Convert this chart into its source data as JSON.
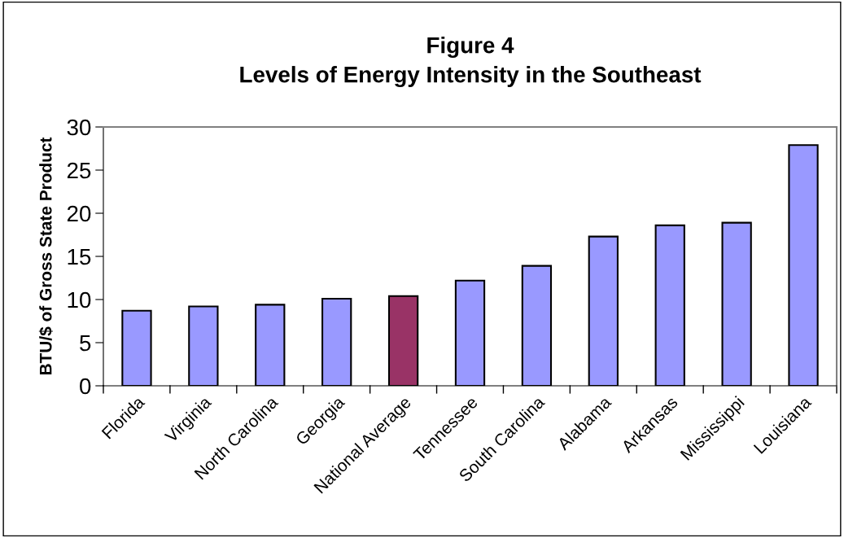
{
  "chart_data": {
    "type": "bar",
    "title": "Figure 4\nLevels of Energy Intensity in the Southeast",
    "ylabel": "BTU/$ of Gross State Product",
    "categories": [
      "Florida",
      "Virginia",
      "North Carolina",
      "Georgia",
      "National Average",
      "Tennessee",
      "South Carolina",
      "Alabama",
      "Arkansas",
      "Mississippi",
      "Louisiana"
    ],
    "values": [
      8.7,
      9.2,
      9.4,
      10.1,
      10.4,
      12.2,
      13.9,
      17.3,
      18.6,
      18.9,
      27.9
    ],
    "colors": [
      "#9999ff",
      "#9999ff",
      "#9999ff",
      "#9999ff",
      "#993366",
      "#9999ff",
      "#9999ff",
      "#9999ff",
      "#9999ff",
      "#9999ff",
      "#9999ff"
    ],
    "ylim": [
      0,
      30
    ],
    "yticks": [
      0,
      5,
      10,
      15,
      20,
      25,
      30
    ],
    "grid": false,
    "legend": false
  }
}
